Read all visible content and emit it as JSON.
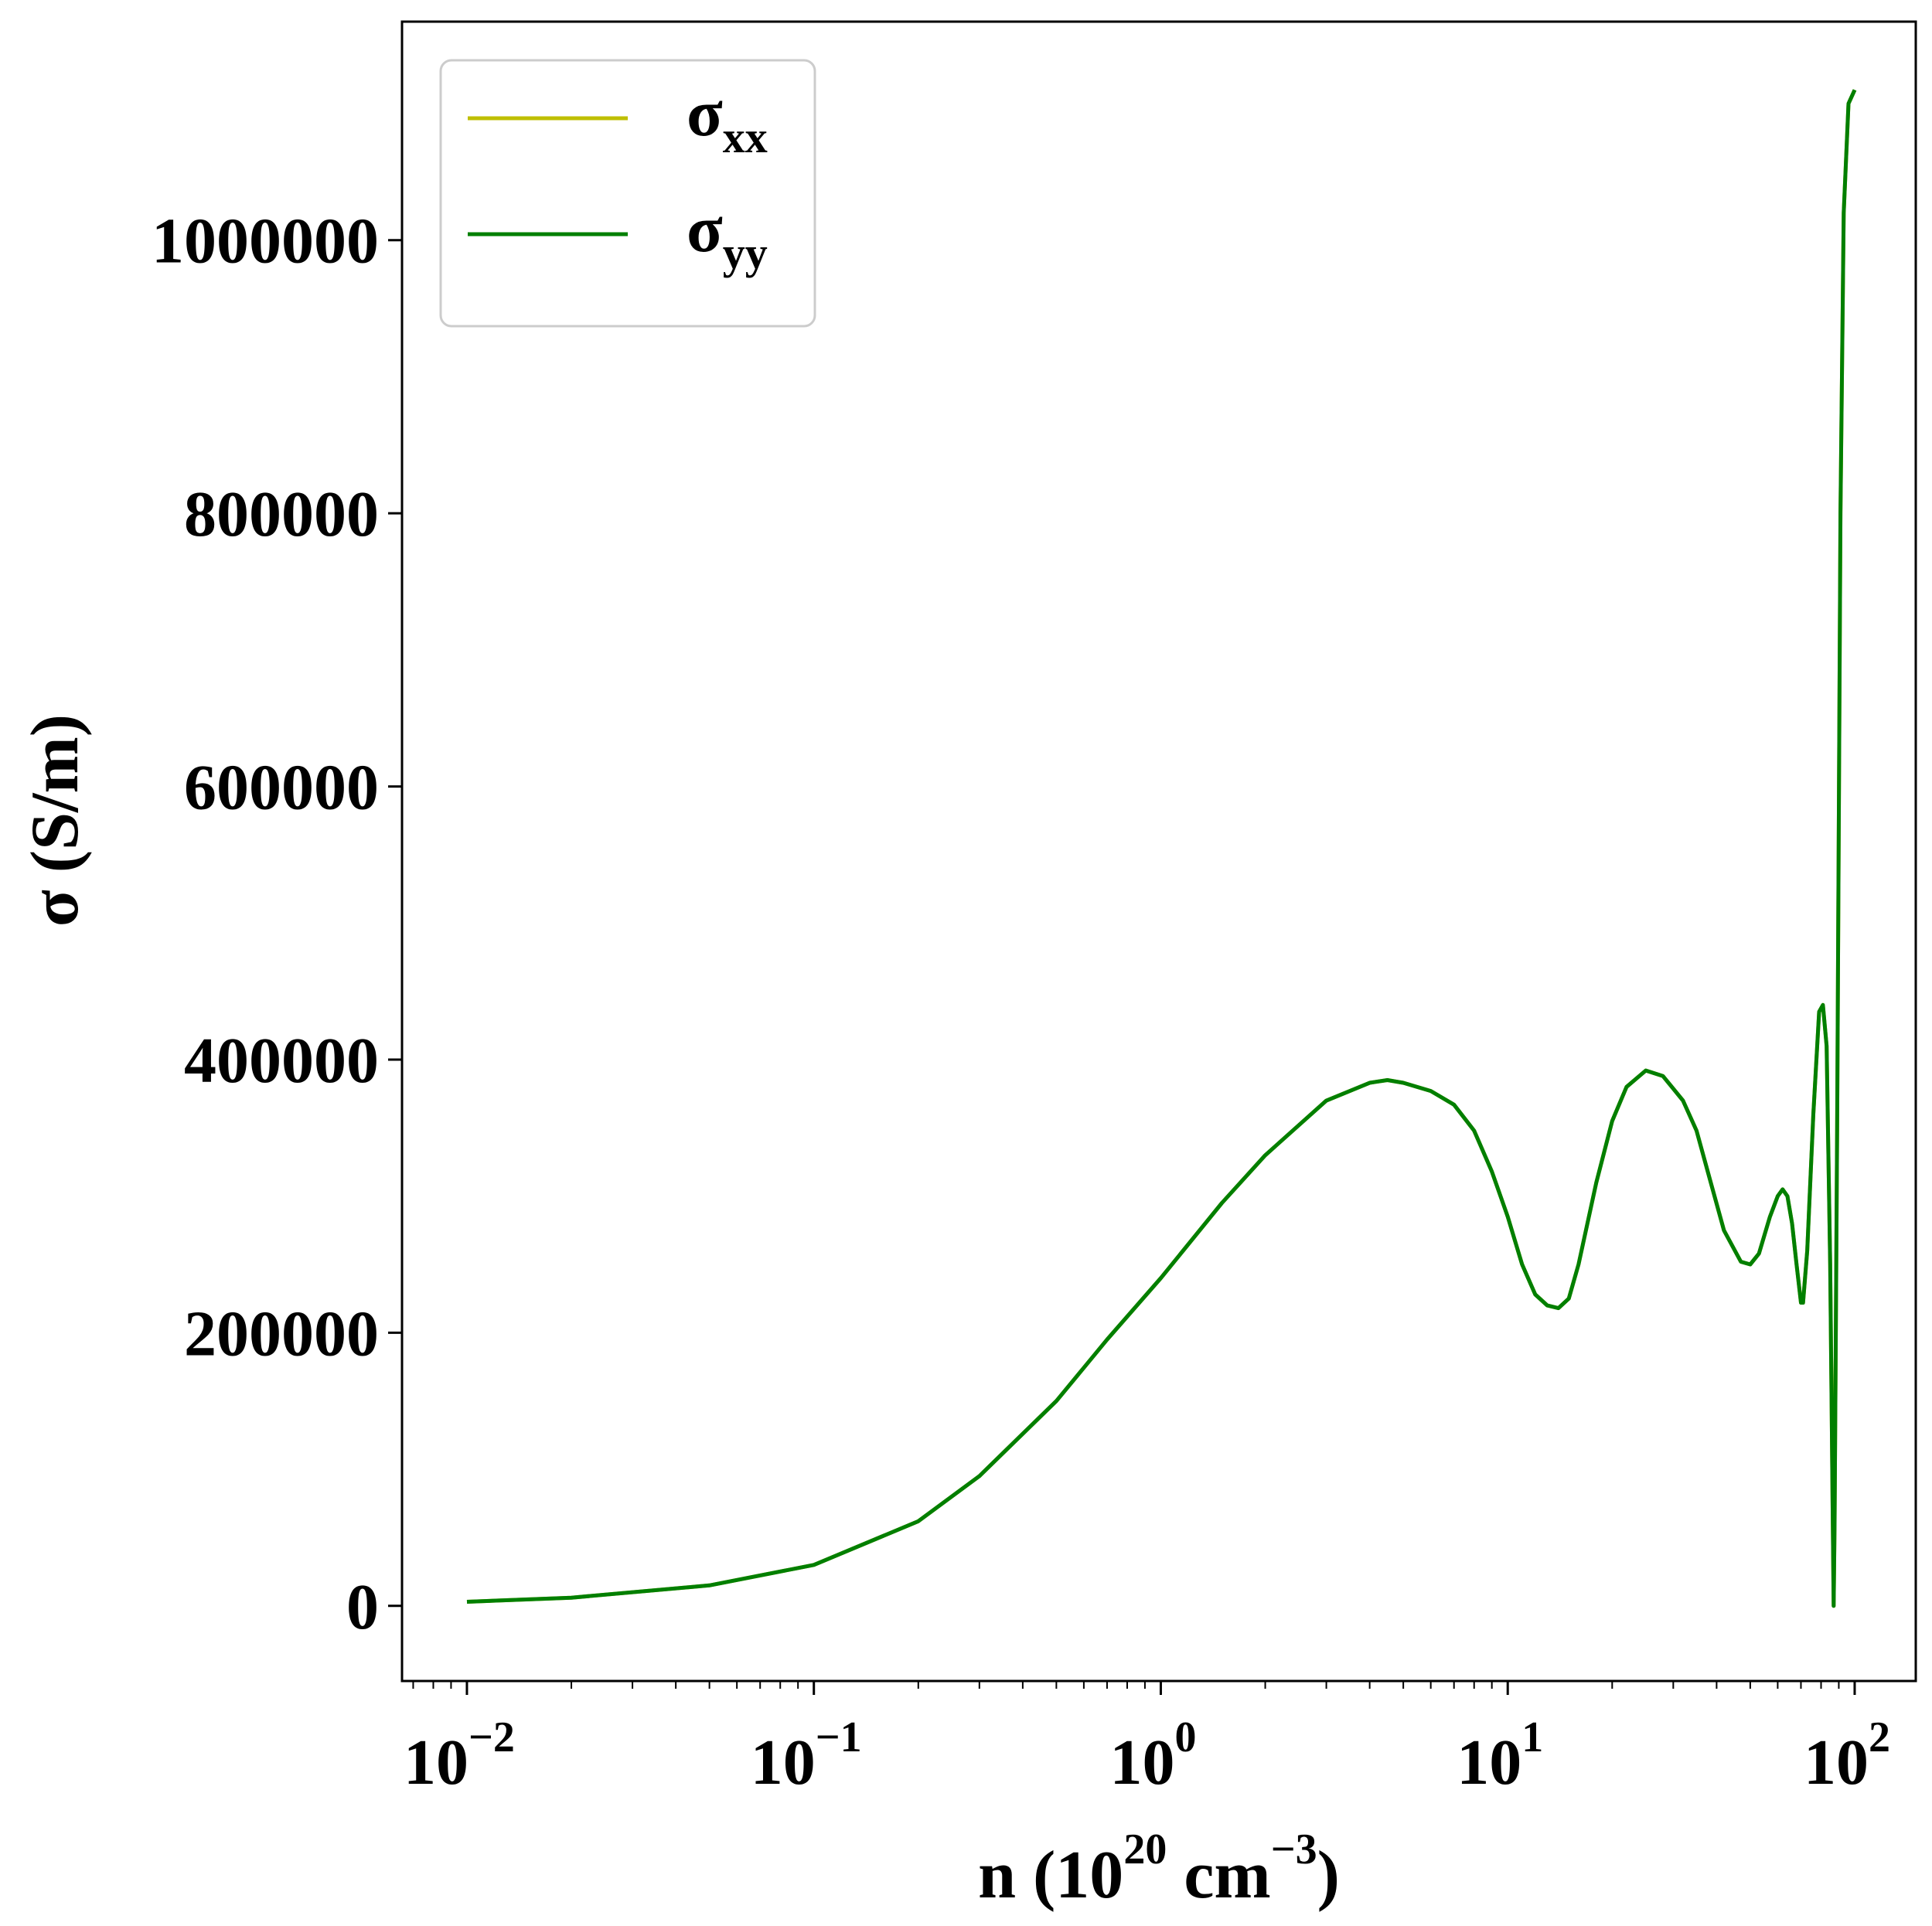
{
  "chart_data": {
    "type": "line",
    "xscale": "log",
    "xlim": [
      0.0065,
      150
    ],
    "ylim": [
      -55000,
      1160000
    ],
    "xlabel": {
      "prefix": "n (10",
      "exp": "20",
      "mid": " cm",
      "exp2": "−3",
      "suffix": ")"
    },
    "ylabel": "σ (S/m)",
    "x_ticks": [
      {
        "value": 0.01,
        "base": "10",
        "exp": "−2"
      },
      {
        "value": 0.1,
        "base": "10",
        "exp": "−1"
      },
      {
        "value": 1,
        "base": "10",
        "exp": "0"
      },
      {
        "value": 10,
        "base": "10",
        "exp": "1"
      },
      {
        "value": 100,
        "base": "10",
        "exp": "2"
      }
    ],
    "y_ticks": [
      {
        "value": 0,
        "label": "0"
      },
      {
        "value": 200000,
        "label": "200000"
      },
      {
        "value": 400000,
        "label": "400000"
      },
      {
        "value": 600000,
        "label": "600000"
      },
      {
        "value": 800000,
        "label": "800000"
      },
      {
        "value": 1000000,
        "label": "1000000"
      }
    ],
    "legend": {
      "position": "upper-left"
    },
    "series": [
      {
        "name": "σ",
        "name_sub": "xx",
        "color": "#bfbf00",
        "points": [
          [
            0.01,
            3000
          ],
          [
            0.02,
            6000
          ],
          [
            0.05,
            15000
          ],
          [
            0.1,
            30000
          ],
          [
            0.2,
            62000
          ],
          [
            0.3,
            95000
          ],
          [
            0.5,
            150000
          ],
          [
            0.7,
            195000
          ],
          [
            1,
            240000
          ],
          [
            1.5,
            295000
          ],
          [
            2,
            330000
          ],
          [
            3,
            370000
          ],
          [
            4,
            383000
          ],
          [
            4.5,
            385000
          ],
          [
            5,
            383000
          ],
          [
            6,
            377000
          ],
          [
            7,
            367000
          ],
          [
            8,
            348000
          ],
          [
            9,
            318000
          ],
          [
            10,
            285000
          ],
          [
            11,
            250000
          ],
          [
            12,
            228000
          ],
          [
            13,
            220000
          ],
          [
            14,
            218000
          ],
          [
            15,
            225000
          ],
          [
            16,
            250000
          ],
          [
            18,
            310000
          ],
          [
            20,
            355000
          ],
          [
            22,
            380000
          ],
          [
            25,
            392000
          ],
          [
            28,
            388000
          ],
          [
            32,
            370000
          ],
          [
            35,
            348000
          ],
          [
            38,
            315000
          ],
          [
            42,
            275000
          ],
          [
            47,
            252000
          ],
          [
            50,
            250000
          ],
          [
            53,
            258000
          ],
          [
            57,
            285000
          ],
          [
            60,
            300000
          ],
          [
            62,
            305000
          ],
          [
            64,
            300000
          ],
          [
            66,
            280000
          ],
          [
            68,
            250000
          ],
          [
            70,
            222000
          ],
          [
            71,
            222000
          ],
          [
            73,
            260000
          ],
          [
            76,
            360000
          ],
          [
            79,
            435000
          ],
          [
            81,
            440000
          ],
          [
            83,
            410000
          ],
          [
            85,
            250000
          ],
          [
            86.5,
            60000
          ],
          [
            87,
            0
          ],
          [
            87.5,
            60000
          ],
          [
            89,
            350000
          ],
          [
            91,
            800000
          ],
          [
            93,
            1020000
          ],
          [
            96,
            1100000
          ],
          [
            100,
            1110000
          ]
        ]
      },
      {
        "name": "σ",
        "name_sub": "yy",
        "color": "#007f00",
        "points": [
          [
            0.01,
            3000
          ],
          [
            0.02,
            6000
          ],
          [
            0.05,
            15000
          ],
          [
            0.1,
            30000
          ],
          [
            0.2,
            62000
          ],
          [
            0.3,
            95000
          ],
          [
            0.5,
            150000
          ],
          [
            0.7,
            195000
          ],
          [
            1,
            240000
          ],
          [
            1.5,
            295000
          ],
          [
            2,
            330000
          ],
          [
            3,
            370000
          ],
          [
            4,
            383000
          ],
          [
            4.5,
            385000
          ],
          [
            5,
            383000
          ],
          [
            6,
            377000
          ],
          [
            7,
            367000
          ],
          [
            8,
            348000
          ],
          [
            9,
            318000
          ],
          [
            10,
            285000
          ],
          [
            11,
            250000
          ],
          [
            12,
            228000
          ],
          [
            13,
            220000
          ],
          [
            14,
            218000
          ],
          [
            15,
            225000
          ],
          [
            16,
            250000
          ],
          [
            18,
            310000
          ],
          [
            20,
            355000
          ],
          [
            22,
            380000
          ],
          [
            25,
            392000
          ],
          [
            28,
            388000
          ],
          [
            32,
            370000
          ],
          [
            35,
            348000
          ],
          [
            38,
            315000
          ],
          [
            42,
            275000
          ],
          [
            47,
            252000
          ],
          [
            50,
            250000
          ],
          [
            53,
            258000
          ],
          [
            57,
            285000
          ],
          [
            60,
            300000
          ],
          [
            62,
            305000
          ],
          [
            64,
            300000
          ],
          [
            66,
            280000
          ],
          [
            68,
            250000
          ],
          [
            70,
            222000
          ],
          [
            71,
            222000
          ],
          [
            73,
            260000
          ],
          [
            76,
            360000
          ],
          [
            79,
            435000
          ],
          [
            81,
            440000
          ],
          [
            83,
            410000
          ],
          [
            85,
            250000
          ],
          [
            86.5,
            60000
          ],
          [
            87,
            0
          ],
          [
            87.5,
            60000
          ],
          [
            89,
            350000
          ],
          [
            91,
            800000
          ],
          [
            93,
            1020000
          ],
          [
            96,
            1100000
          ],
          [
            100,
            1110000
          ]
        ]
      }
    ]
  }
}
